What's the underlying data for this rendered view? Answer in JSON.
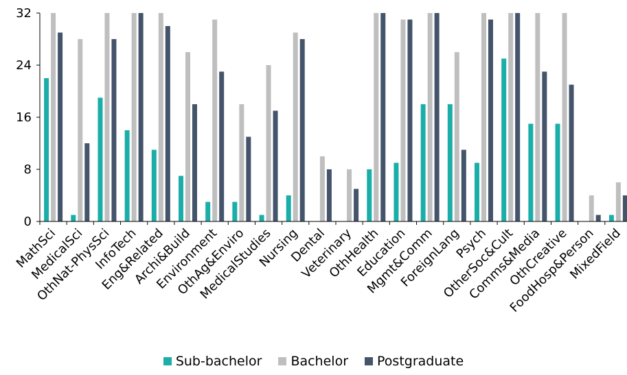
{
  "chart_data": {
    "type": "bar",
    "categories": [
      "MathSci",
      "MedicalSci",
      "OthNat-PhysSci",
      "InfoTech",
      "Eng&Related",
      "Archi&Build",
      "Environment",
      "OthAg&Enviro",
      "MedicalStudies",
      "Nursing",
      "Dental",
      "Veterinary",
      "OthHealth",
      "Education",
      "Mgmt&Comm",
      "ForeignLang",
      "Psych",
      "OtherSoc&Cult",
      "Comms&Media",
      "OthCreative",
      "FoodHosp&Person",
      "MixedField"
    ],
    "series": [
      {
        "name": "Sub-bachelor",
        "color": "#1aaea9",
        "values": [
          22,
          1,
          19,
          14,
          11,
          7,
          3,
          3,
          1,
          4,
          0,
          0,
          8,
          9,
          18,
          18,
          9,
          25,
          15,
          15,
          0,
          1
        ]
      },
      {
        "name": "Bachelor",
        "color": "#bfbfbf",
        "values": [
          32,
          28,
          32,
          32,
          32,
          26,
          31,
          18,
          24,
          29,
          10,
          8,
          32,
          31,
          32,
          26,
          32,
          32,
          32,
          32,
          4,
          6
        ]
      },
      {
        "name": "Postgraduate",
        "color": "#44546a",
        "values": [
          29,
          12,
          28,
          32,
          30,
          18,
          23,
          13,
          17,
          28,
          8,
          5,
          32,
          31,
          32,
          11,
          31,
          32,
          23,
          21,
          1,
          4
        ]
      }
    ],
    "yticks": [
      "0",
      "8",
      "16",
      "24",
      "32"
    ],
    "ylim": [
      0,
      32
    ],
    "xlabel": "",
    "ylabel": "",
    "title": "",
    "legend_position": "bottom",
    "grid": false
  }
}
